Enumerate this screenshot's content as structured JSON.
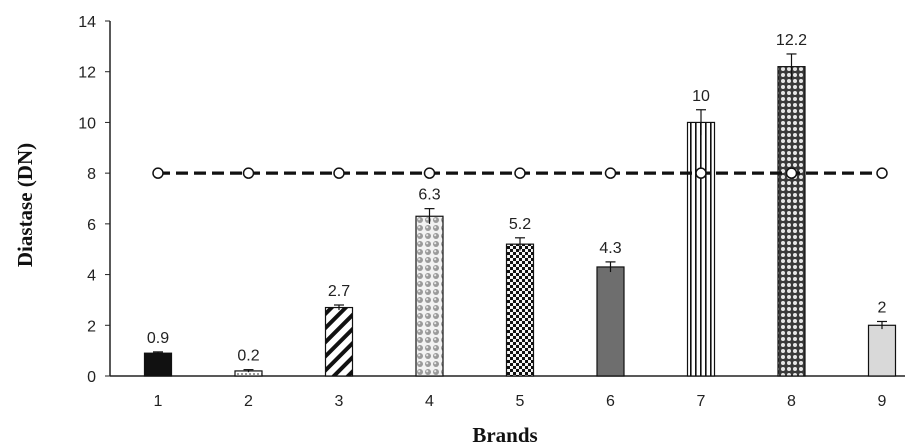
{
  "chart_data": {
    "type": "bar",
    "categories": [
      "1",
      "2",
      "3",
      "4",
      "5",
      "6",
      "7",
      "8",
      "9"
    ],
    "values": [
      0.9,
      0.2,
      2.7,
      6.3,
      5.2,
      4.3,
      10,
      12.2,
      2
    ],
    "errors": [
      0.05,
      0.05,
      0.1,
      0.3,
      0.25,
      0.2,
      0.5,
      0.5,
      0.15
    ],
    "data_labels": [
      "0.9",
      "0.2",
      "2.7",
      "6.3",
      "5.2",
      "4.3",
      "10",
      "12.2",
      "2"
    ],
    "bar_fills": [
      "solid-black",
      "light-dotted",
      "diagonal-stripes",
      "large-dots",
      "checker",
      "solid-gray",
      "vertical-stripes",
      "fine-dots",
      "light-gray"
    ],
    "reference_line": {
      "value": 8,
      "style": "dashed",
      "markers": "circles"
    },
    "xlabel": "Brands",
    "ylabel": "Diastase (DN)",
    "ylim": [
      0,
      14
    ],
    "yticks": [
      "0",
      "2",
      "4",
      "6",
      "8",
      "10",
      "12",
      "14"
    ],
    "grid": false,
    "legend": "none"
  }
}
